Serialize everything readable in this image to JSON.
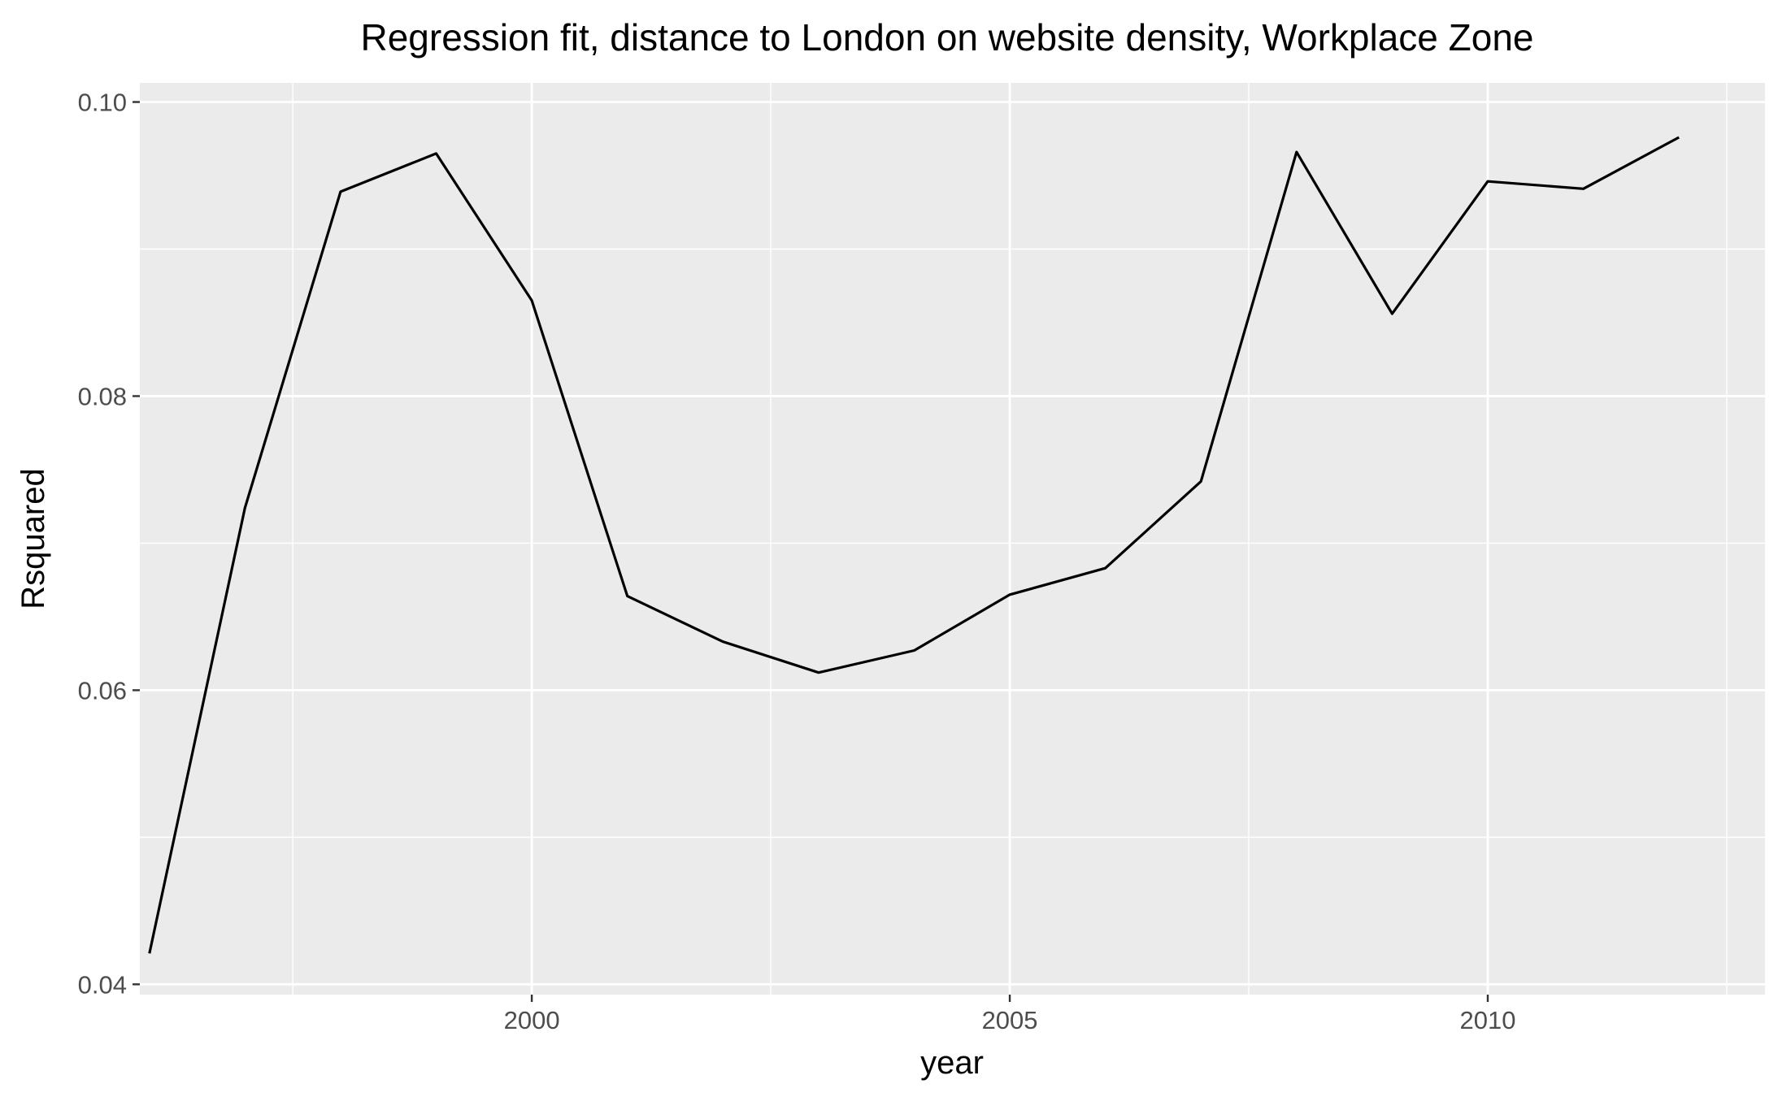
{
  "chart_data": {
    "type": "line",
    "title": "Regression fit, distance to London on website density, Workplace Zone",
    "xlabel": "year",
    "ylabel": "Rsquared",
    "xlim": [
      1995.9,
      2012.9
    ],
    "ylim": [
      0.0393,
      0.1013
    ],
    "x_ticks": [
      2000,
      2005,
      2010
    ],
    "y_ticks": [
      0.04,
      0.06,
      0.08,
      0.1
    ],
    "x_tick_labels": [
      "2000",
      "2005",
      "2010"
    ],
    "y_tick_labels": [
      "0.04",
      "0.06",
      "0.08",
      "0.10"
    ],
    "grid": true,
    "legend": "none",
    "colors": {
      "panel_bg": "#ebebeb",
      "grid": "#ffffff",
      "line": "#000000"
    },
    "series": [
      {
        "x": [
          1996,
          1997,
          1998,
          1999,
          2000,
          2001,
          2002,
          2003,
          2004,
          2005,
          2006,
          2007,
          2008,
          2009,
          2010,
          2011,
          2012
        ],
        "values": [
          0.0421,
          0.0724,
          0.0939,
          0.0965,
          0.0865,
          0.0664,
          0.0633,
          0.0612,
          0.0627,
          0.0665,
          0.0683,
          0.0742,
          0.0966,
          0.0856,
          0.0946,
          0.0941,
          0.0976
        ]
      }
    ]
  }
}
